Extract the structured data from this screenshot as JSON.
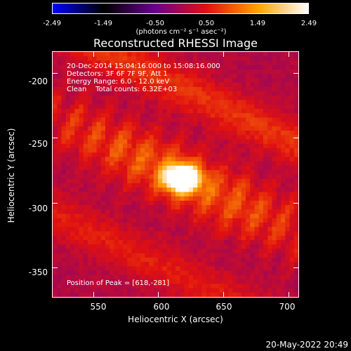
{
  "colorbar": {
    "ticks": [
      "-2.49",
      "-1.49",
      "-0.50",
      "0.50",
      "1.49",
      "2.49"
    ],
    "units": "(photons cm⁻² s⁻¹ asec⁻²)"
  },
  "title": "Reconstructed RHESSI Image",
  "annotations": {
    "time_range": "20-Dec-2014 15:04:16.000 to 15:08:16.000",
    "detectors": "Detectors: 3F 6F 7F 9F, Att 1",
    "energy": "Energy Range: 6.0 - 12.0 keV",
    "method": "Clean    Total counts: 6.32E+03",
    "peak": "Position of Peak = [618,-281]"
  },
  "axes": {
    "xlabel": "Heliocentric X (arcsec)",
    "ylabel": "Heliocentric Y (arcsec)",
    "xticks": [
      "550",
      "600",
      "650",
      "700"
    ],
    "yticks": [
      "-200",
      "-250",
      "-300",
      "-350"
    ]
  },
  "footer": "20-May-2022 20:49",
  "chart_data": {
    "type": "heatmap",
    "title": "Reconstructed RHESSI Image",
    "xlabel": "Heliocentric X (arcsec)",
    "ylabel": "Heliocentric Y (arcsec)",
    "xlim": [
      518,
      708
    ],
    "ylim": [
      -373,
      -183
    ],
    "xticks": [
      550,
      600,
      650,
      700
    ],
    "yticks": [
      -200,
      -250,
      -300,
      -350
    ],
    "colorbar_range": [
      -2.49,
      2.49
    ],
    "peak": [
      618,
      -281
    ],
    "colormap": [
      "#0000ff",
      "#000000",
      "#6a0090",
      "#e01010",
      "#ffa000",
      "#ffffff"
    ]
  }
}
